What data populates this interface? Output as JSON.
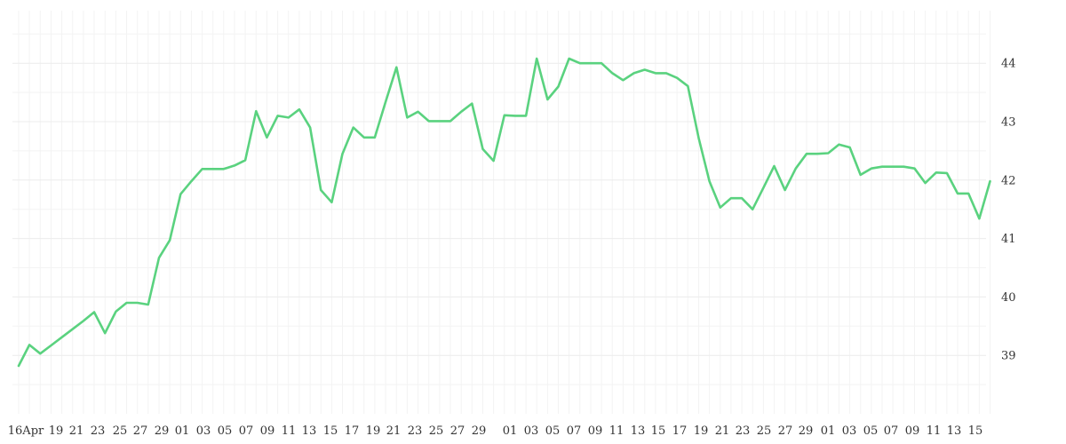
{
  "chart_data": {
    "type": "line",
    "title": "",
    "xlabel": "",
    "ylabel": "",
    "ylim": [
      38,
      44.9
    ],
    "grid": true,
    "legend": "none",
    "y_axis_side": "right",
    "y_ticks": [
      "39",
      "40",
      "41",
      "42",
      "43",
      "44"
    ],
    "x_tick_labels": [
      "16Apr",
      "19",
      "21",
      "23",
      "25",
      "27",
      "29",
      "01",
      "03",
      "05",
      "07",
      "09",
      "11",
      "13",
      "15",
      "17",
      "19",
      "21",
      "23",
      "25",
      "27",
      "29",
      "01",
      "03",
      "05",
      "07",
      "09",
      "11",
      "13",
      "15",
      "17",
      "19",
      "21",
      "23",
      "25",
      "27",
      "29",
      "01",
      "03",
      "05",
      "07",
      "09",
      "11",
      "13",
      "15"
    ],
    "series": [
      {
        "color": "#5ad27f",
        "values": [
          38.82,
          39.18,
          39.03,
          39.17,
          39.31,
          39.45,
          39.59,
          39.74,
          39.38,
          39.75,
          39.9,
          39.9,
          39.87,
          40.67,
          40.97,
          41.76,
          41.98,
          42.19,
          42.19,
          42.19,
          42.25,
          42.34,
          43.18,
          42.73,
          43.1,
          43.07,
          43.21,
          42.9,
          41.83,
          41.62,
          42.45,
          42.9,
          42.73,
          42.73,
          43.34,
          43.93,
          43.07,
          43.17,
          43.01,
          43.01,
          43.01,
          43.17,
          43.31,
          42.53,
          42.33,
          43.11,
          43.1,
          43.1,
          44.08,
          43.38,
          43.6,
          44.08,
          44.0,
          44.0,
          44.0,
          43.83,
          43.71,
          43.83,
          43.89,
          43.83,
          43.83,
          43.75,
          43.61,
          42.72,
          41.98,
          41.53,
          41.69,
          41.69,
          41.5,
          41.87,
          42.24,
          41.83,
          42.2,
          42.45,
          42.45,
          42.46,
          42.61,
          42.56,
          42.09,
          42.2,
          42.23,
          42.23,
          42.23,
          42.2,
          41.95,
          42.13,
          42.12,
          41.77,
          41.77,
          41.34,
          41.98
        ]
      }
    ]
  }
}
